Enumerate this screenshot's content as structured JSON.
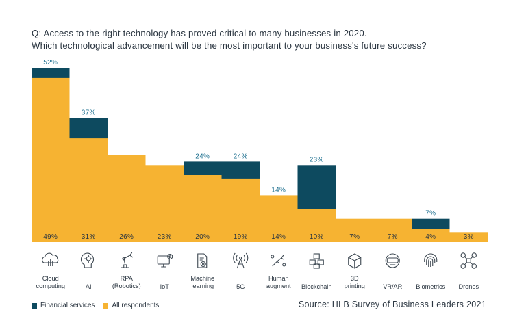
{
  "question": {
    "line1": "Q: Access to the right technology has proved critical to many businesses in 2020.",
    "line2": "Which technological advancement will be the most important to your business's future success?"
  },
  "legend": {
    "financial": "Financial services",
    "all": "All respondents"
  },
  "source": "Source: HLB Survey of Business Leaders 2021",
  "colors": {
    "financial": "#0d4a5f",
    "all": "#f6b332",
    "financial_label": "#1c6f8f",
    "all_label": "#2a3540",
    "icon": "#3b4650"
  },
  "chart_data": {
    "type": "bar",
    "categories": [
      [
        "Cloud",
        "computing"
      ],
      [
        "AI"
      ],
      [
        "RPA",
        "(Robotics)"
      ],
      [
        "IoT"
      ],
      [
        "Machine",
        "learning"
      ],
      [
        "5G"
      ],
      [
        "Human",
        "augment"
      ],
      [
        "Blockchain"
      ],
      [
        "3D",
        "printing"
      ],
      [
        "VR/AR"
      ],
      [
        "Biometrics"
      ],
      [
        "Drones"
      ]
    ],
    "icons": [
      "cloud-computing-icon",
      "ai-head-icon",
      "robot-arm-icon",
      "iot-monitor-icon",
      "machine-learning-icon",
      "5g-tower-icon",
      "human-augment-icon",
      "blockchain-icon",
      "3d-printing-icon",
      "vr-headset-icon",
      "fingerprint-icon",
      "drone-icon"
    ],
    "series": [
      {
        "name": "All respondents",
        "values": [
          49,
          31,
          26,
          23,
          20,
          19,
          14,
          10,
          7,
          7,
          4,
          3
        ],
        "labels": [
          "49%",
          "31%",
          "26%",
          "23%",
          "20%",
          "19%",
          "14%",
          "10%",
          "7%",
          "7%",
          "4%",
          "3%"
        ]
      },
      {
        "name": "Financial services",
        "values": [
          52,
          37,
          null,
          null,
          24,
          24,
          14,
          23,
          null,
          null,
          7,
          null
        ],
        "labels": [
          "52%",
          "37%",
          "",
          "",
          "24%",
          "24%",
          "14%",
          "23%",
          "",
          "",
          "7%",
          ""
        ]
      }
    ],
    "ylim": [
      0,
      55
    ]
  }
}
